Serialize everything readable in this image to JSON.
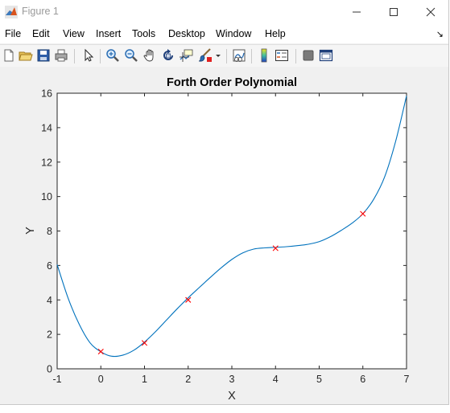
{
  "window": {
    "title": "Figure 1"
  },
  "menu": {
    "items": [
      "File",
      "Edit",
      "View",
      "Insert",
      "Tools",
      "Desktop",
      "Window",
      "Help"
    ]
  },
  "toolbar": {
    "icons": [
      "new-figure-icon",
      "open-file-icon",
      "save-icon",
      "print-icon",
      "select-arrow-icon",
      "zoom-in-icon",
      "zoom-out-icon",
      "pan-hand-icon",
      "rotate-3d-icon",
      "data-cursor-icon",
      "brush-icon",
      "brush-dropdown-icon",
      "link-plot-icon",
      "colorbar-icon",
      "legend-icon",
      "hide-plot-tools-icon",
      "show-plot-tools-icon"
    ]
  },
  "colors": {
    "curve": "#0072bd",
    "markers": "#ff0000",
    "background": "#f0f0f0",
    "axes": "#ffffff"
  },
  "chart_data": {
    "type": "line",
    "title": "Forth Order Polynomial",
    "xlabel": "X",
    "ylabel": "Y",
    "xlim": [
      -1,
      7
    ],
    "ylim": [
      0,
      16
    ],
    "xticks": [
      -1,
      0,
      1,
      2,
      3,
      4,
      5,
      6,
      7
    ],
    "yticks": [
      0,
      2,
      4,
      6,
      8,
      10,
      12,
      14,
      16
    ],
    "grid": false,
    "series": [
      {
        "style": "line",
        "x": [
          -1,
          -0.75,
          -0.5,
          -0.25,
          0,
          0.25,
          0.5,
          0.75,
          1,
          1.25,
          1.5,
          1.75,
          2,
          2.25,
          2.5,
          2.75,
          3,
          3.25,
          3.5,
          3.75,
          4,
          4.25,
          4.5,
          4.75,
          5,
          5.25,
          5.5,
          5.75,
          6,
          6.25,
          6.5,
          6.75,
          7
        ],
        "y": [
          6.05,
          4.11,
          2.61,
          1.52,
          0.99,
          0.73,
          0.79,
          1.07,
          1.55,
          2.15,
          2.82,
          3.49,
          4.12,
          4.71,
          5.29,
          5.85,
          6.35,
          6.73,
          6.95,
          7.02,
          7.05,
          7.09,
          7.15,
          7.23,
          7.38,
          7.66,
          8.03,
          8.45,
          9.0,
          9.85,
          11.15,
          13.2,
          15.85
        ]
      },
      {
        "style": "markers",
        "marker": "x",
        "x": [
          0,
          1,
          2,
          4,
          6
        ],
        "y": [
          1,
          1.5,
          4,
          7,
          9
        ]
      }
    ]
  }
}
